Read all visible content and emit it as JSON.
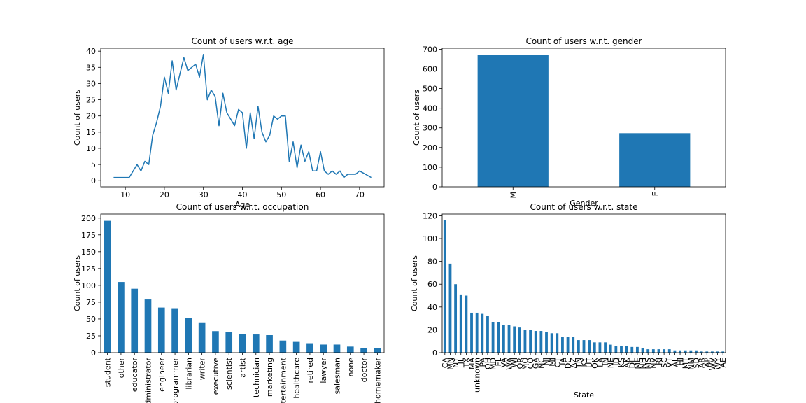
{
  "chart_data": [
    {
      "type": "line",
      "title": "Count of users w.r.t. age",
      "xlabel": "Age",
      "ylabel": "Count of users",
      "xlim": [
        3.7,
        76.3
      ],
      "ylim": [
        -1.9,
        40.9
      ],
      "xticks": [
        10,
        20,
        30,
        40,
        50,
        60,
        70
      ],
      "yticks": [
        0,
        5,
        10,
        15,
        20,
        25,
        30,
        35,
        40
      ],
      "color": "#1f77b4",
      "x": [
        7,
        10,
        11,
        13,
        14,
        15,
        16,
        17,
        18,
        19,
        20,
        21,
        22,
        23,
        24,
        25,
        26,
        27,
        28,
        29,
        30,
        31,
        32,
        33,
        34,
        35,
        36,
        37,
        38,
        39,
        40,
        41,
        42,
        43,
        44,
        45,
        46,
        47,
        48,
        49,
        50,
        51,
        52,
        53,
        54,
        55,
        56,
        57,
        58,
        59,
        60,
        61,
        62,
        63,
        64,
        65,
        66,
        67,
        68,
        69,
        70,
        73
      ],
      "values": [
        1,
        1,
        1,
        5,
        3,
        6,
        5,
        14,
        18,
        23,
        32,
        27,
        37,
        28,
        33,
        38,
        34,
        35,
        36,
        32,
        39,
        25,
        28,
        26,
        17,
        27,
        21,
        19,
        17,
        22,
        21,
        10,
        21,
        13,
        23,
        15,
        12,
        14,
        20,
        19,
        20,
        20,
        6,
        12,
        4,
        11,
        6,
        9,
        3,
        3,
        9,
        3,
        2,
        3,
        2,
        3,
        1,
        2,
        2,
        2,
        3,
        1
      ]
    },
    {
      "type": "bar",
      "title": "Count of users w.r.t. gender",
      "xlabel": "Gender",
      "ylabel": "Count of users",
      "ylim": [
        0,
        705
      ],
      "yticks": [
        0,
        100,
        200,
        300,
        400,
        500,
        600,
        700
      ],
      "color": "#1f77b4",
      "categories": [
        "M",
        "F"
      ],
      "values": [
        670,
        273
      ]
    },
    {
      "type": "bar",
      "title": "Count of users w.r.t. occupation",
      "xlabel": "",
      "ylabel": "Count of users",
      "ylim": [
        0,
        206
      ],
      "yticks": [
        0,
        25,
        50,
        75,
        100,
        125,
        150,
        175,
        200
      ],
      "color": "#1f77b4",
      "categories": [
        "student",
        "other",
        "educator",
        "administrator",
        "engineer",
        "programmer",
        "librarian",
        "writer",
        "executive",
        "scientist",
        "artist",
        "technician",
        "marketing",
        "entertainment",
        "healthcare",
        "retired",
        "lawyer",
        "salesman",
        "none",
        "doctor",
        "homemaker"
      ],
      "values": [
        196,
        105,
        95,
        79,
        67,
        66,
        51,
        45,
        32,
        31,
        28,
        27,
        26,
        18,
        16,
        14,
        12,
        12,
        9,
        7,
        7
      ]
    },
    {
      "type": "bar",
      "title": "Count of users w.r.t. state",
      "xlabel": "State",
      "ylabel": "Count of users",
      "ylim": [
        0,
        121.5
      ],
      "yticks": [
        0,
        20,
        40,
        60,
        80,
        100,
        120
      ],
      "color": "#1f77b4",
      "categories": [
        "CA",
        "MN",
        "NY",
        "IL",
        "TX",
        "MA",
        "unknown",
        "PA",
        "OH",
        "MD",
        "FL",
        "VA",
        "WA",
        "WI",
        "OR",
        "MO",
        "CO",
        "GA",
        "NC",
        "NJ",
        "MI",
        "CT",
        "IA",
        "DC",
        "AZ",
        "TN",
        "KY",
        "UT",
        "OK",
        "LA",
        "IN",
        "NE",
        "ID",
        "KS",
        "AK",
        "DE",
        "ME",
        "NH",
        "MS",
        "NV",
        "RI",
        "SC",
        "VT",
        "AL",
        "HI",
        "MT",
        "NM",
        "SD",
        "AR",
        "AP",
        "WV",
        "WY",
        "AE"
      ],
      "values": [
        116,
        78,
        60,
        51,
        50,
        35,
        35,
        34,
        32,
        27,
        27,
        24,
        24,
        23,
        22,
        20,
        20,
        19,
        19,
        18,
        17,
        17,
        14,
        14,
        14,
        11,
        11,
        11,
        9,
        9,
        9,
        7,
        6,
        6,
        6,
        5,
        5,
        4,
        3,
        3,
        3,
        3,
        3,
        2,
        2,
        2,
        2,
        2,
        1,
        1,
        1,
        1,
        1
      ]
    }
  ]
}
